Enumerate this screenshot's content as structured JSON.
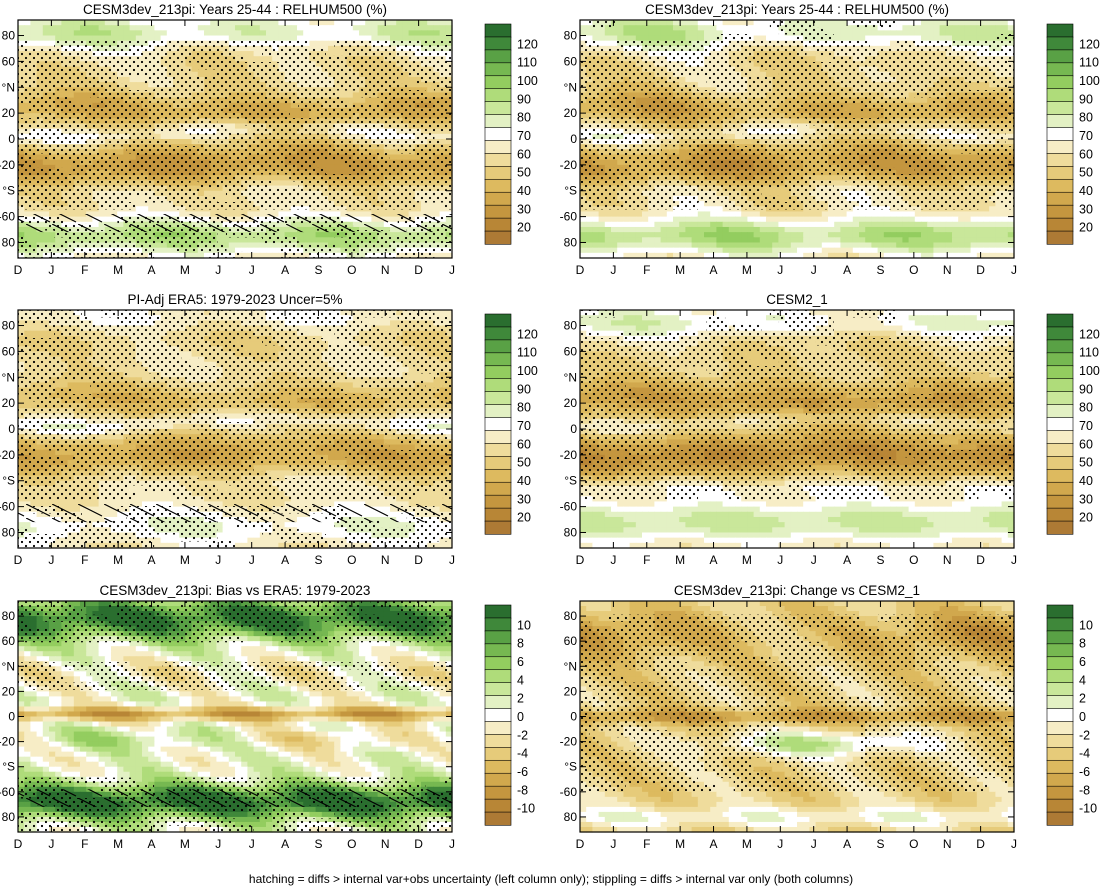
{
  "figure": {
    "footer": "hatching = diffs > internal var+obs uncertainty (left column only); stippling = diffs > internal var only (both columns)"
  },
  "colors": {
    "abs": [
      "#ad7a35",
      "#b88636",
      "#c4963f",
      "#d1a84d",
      "#ddba5f",
      "#e6cb7a",
      "#efdc9c",
      "#f7edc6",
      "#ffffff",
      "#e3f1c4",
      "#c9e79a",
      "#afdc7a",
      "#93cd5f",
      "#76b851",
      "#59a145",
      "#3f883a",
      "#2a6e2f"
    ],
    "bias": [
      "#ad7a35",
      "#b88636",
      "#c4963f",
      "#d1a84d",
      "#ddba5f",
      "#e6cb7a",
      "#efdc9c",
      "#f7edc6",
      "#ffffff",
      "#e3f1c4",
      "#c9e79a",
      "#afdc7a",
      "#93cd5f",
      "#76b851",
      "#59a145",
      "#3f883a",
      "#2a6e2f"
    ]
  },
  "axes": {
    "x_ticks": [
      "D",
      "J",
      "F",
      "M",
      "A",
      "M",
      "J",
      "J",
      "A",
      "S",
      "O",
      "N",
      "D",
      "J"
    ],
    "y_ticks": [
      "80",
      "60",
      "°N",
      "20",
      "0",
      "-20",
      "°S",
      "-60",
      "80"
    ]
  },
  "chart_data": [
    {
      "type": "heatmap",
      "title": "CESM3dev_213pi: Years 25-44 : RELHUM500 (%)",
      "x": [
        "D",
        "J",
        "F",
        "M",
        "A",
        "M",
        "J",
        "J",
        "A",
        "S",
        "O",
        "N",
        "D",
        "J"
      ],
      "y": [
        80,
        60,
        40,
        20,
        0,
        -20,
        -40,
        -60,
        -80
      ],
      "colorbar": {
        "labels": [
          "120",
          "110",
          "100",
          "90",
          "80",
          "70",
          "60",
          "50",
          "40",
          "30",
          "20"
        ],
        "scheme": "abs"
      },
      "field": "abs_model",
      "hatching": true,
      "stippling": true
    },
    {
      "type": "heatmap",
      "title": "CESM3dev_213pi: Years 25-44 : RELHUM500 (%)",
      "x": [
        "D",
        "J",
        "F",
        "M",
        "A",
        "M",
        "J",
        "J",
        "A",
        "S",
        "O",
        "N",
        "D",
        "J"
      ],
      "y": [
        80,
        60,
        40,
        20,
        0,
        -20,
        -40,
        -60,
        -80
      ],
      "colorbar": {
        "labels": [
          "120",
          "110",
          "100",
          "90",
          "80",
          "70",
          "60",
          "50",
          "40",
          "30",
          "20"
        ],
        "scheme": "abs"
      },
      "field": "abs_model_b",
      "hatching": false,
      "stippling": true
    },
    {
      "type": "heatmap",
      "title": "PI-Adj ERA5: 1979-2023 Uncer=5%",
      "x": [
        "D",
        "J",
        "F",
        "M",
        "A",
        "M",
        "J",
        "J",
        "A",
        "S",
        "O",
        "N",
        "D",
        "J"
      ],
      "y": [
        80,
        60,
        40,
        20,
        0,
        -20,
        -40,
        -60,
        -80
      ],
      "colorbar": {
        "labels": [
          "120",
          "110",
          "100",
          "90",
          "80",
          "70",
          "60",
          "50",
          "40",
          "30",
          "20"
        ],
        "scheme": "abs"
      },
      "field": "abs_obs",
      "hatching": true,
      "stippling": true
    },
    {
      "type": "heatmap",
      "title": "CESM2_1",
      "x": [
        "D",
        "J",
        "F",
        "M",
        "A",
        "M",
        "J",
        "J",
        "A",
        "S",
        "O",
        "N",
        "D",
        "J"
      ],
      "y": [
        80,
        60,
        40,
        20,
        0,
        -20,
        -40,
        -60,
        -80
      ],
      "colorbar": {
        "labels": [
          "120",
          "110",
          "100",
          "90",
          "80",
          "70",
          "60",
          "50",
          "40",
          "30",
          "20"
        ],
        "scheme": "abs"
      },
      "field": "abs_cesm2",
      "hatching": false,
      "stippling": true
    },
    {
      "type": "heatmap",
      "title": "CESM3dev_213pi: Bias vs ERA5: 1979-2023",
      "x": [
        "D",
        "J",
        "F",
        "M",
        "A",
        "M",
        "J",
        "J",
        "A",
        "S",
        "O",
        "N",
        "D",
        "J"
      ],
      "y": [
        80,
        60,
        40,
        20,
        0,
        -20,
        -40,
        -60,
        -80
      ],
      "colorbar": {
        "labels": [
          "10",
          "8",
          "6",
          "4",
          "2",
          "0",
          "-2",
          "-4",
          "-6",
          "-8",
          "-10"
        ],
        "scheme": "bias"
      },
      "field": "bias",
      "hatching": true,
      "stippling": true
    },
    {
      "type": "heatmap",
      "title": "CESM3dev_213pi: Change vs CESM2_1",
      "x": [
        "D",
        "J",
        "F",
        "M",
        "A",
        "M",
        "J",
        "J",
        "A",
        "S",
        "O",
        "N",
        "D",
        "J"
      ],
      "y": [
        80,
        60,
        40,
        20,
        0,
        -20,
        -40,
        -60,
        -80
      ],
      "colorbar": {
        "labels": [
          "10",
          "8",
          "6",
          "4",
          "2",
          "0",
          "-2",
          "-4",
          "-6",
          "-8",
          "-10"
        ],
        "scheme": "bias"
      },
      "field": "change",
      "hatching": false,
      "stippling": true
    }
  ]
}
